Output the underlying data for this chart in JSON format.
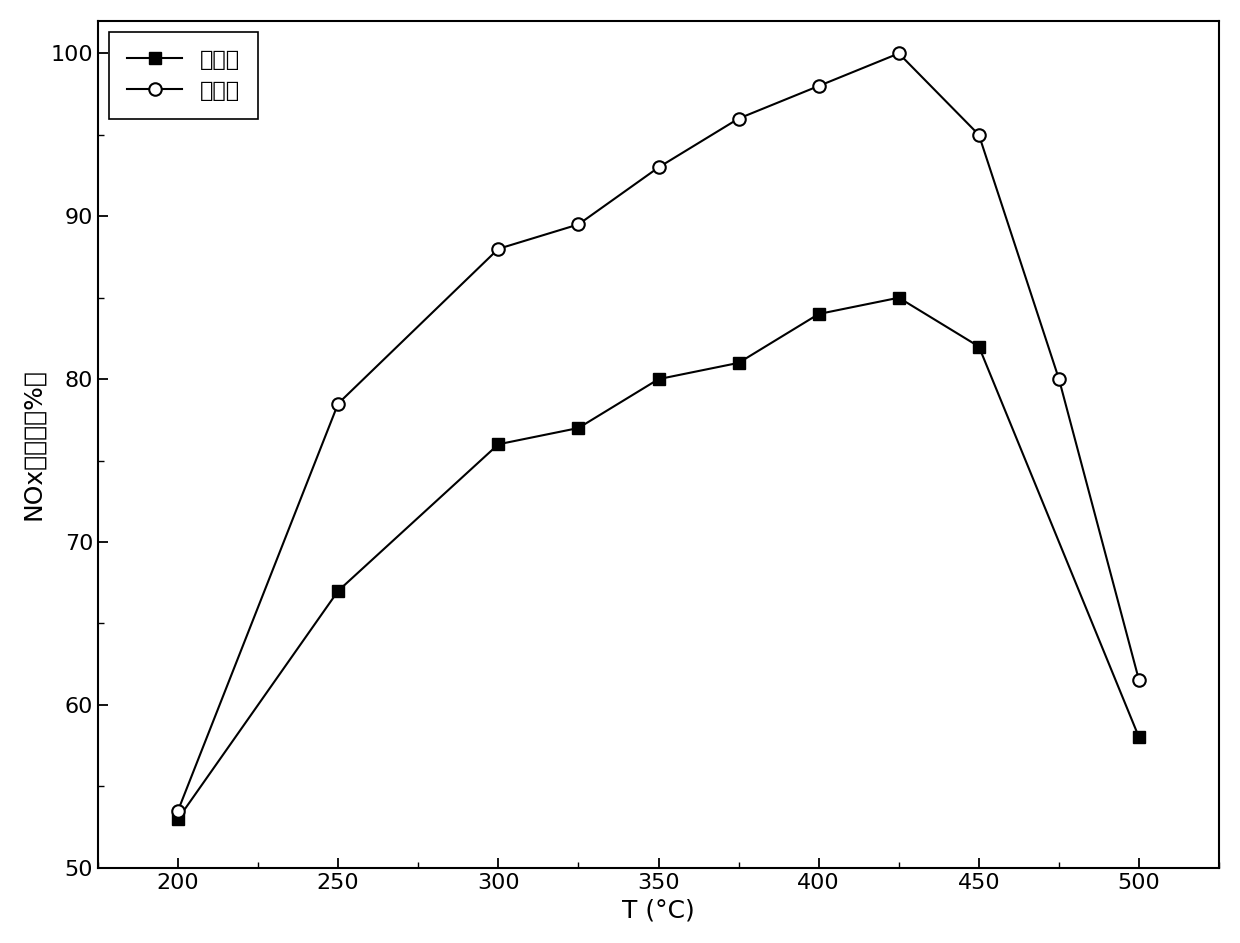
{
  "series1_label": "再生前",
  "series2_label": "再生后",
  "series1_x": [
    200,
    250,
    300,
    325,
    350,
    375,
    400,
    425,
    450,
    500
  ],
  "series1_y": [
    53,
    67,
    76,
    77,
    80,
    81,
    84,
    85,
    82,
    58
  ],
  "series2_x": [
    200,
    250,
    300,
    325,
    350,
    375,
    400,
    425,
    450,
    475,
    500
  ],
  "series2_y": [
    53.5,
    78.5,
    88,
    89.5,
    93,
    96,
    98,
    100,
    95,
    80,
    61.5
  ],
  "xlabel": "T (°C)",
  "ylabel": "NOx转化率（%）",
  "xlim": [
    175,
    525
  ],
  "ylim": [
    50,
    102
  ],
  "xticks": [
    200,
    250,
    300,
    350,
    400,
    450,
    500
  ],
  "yticks": [
    50,
    60,
    70,
    80,
    90,
    100
  ],
  "line_color": "#000000",
  "background_color": "#ffffff",
  "marker1": "s",
  "marker2": "o",
  "markersize": 9,
  "linewidth": 1.5,
  "label_fontsize": 18,
  "tick_fontsize": 16,
  "legend_fontsize": 16
}
